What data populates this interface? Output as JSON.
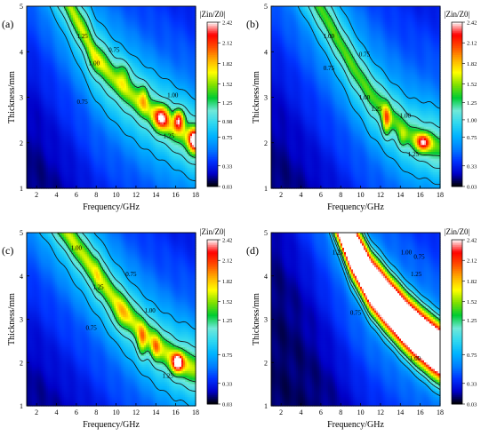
{
  "figure": {
    "colorbar_title": "|Zin/Z0|",
    "colormap": [
      "#000000",
      "#0000c8",
      "#0033ff",
      "#0080ff",
      "#00b4ff",
      "#30d8f0",
      "#70e8d8",
      "#00cc33",
      "#7de000",
      "#ffff00",
      "#ffb000",
      "#ff5000",
      "#ff0000",
      "#ffffff"
    ]
  },
  "chart_data": [
    {
      "type": "heatmap",
      "panel_label": "(a)",
      "xlabel": "Frequency/GHz",
      "ylabel": "Thickness/mm",
      "xlim": [
        1,
        18
      ],
      "ylim": [
        1,
        5
      ],
      "xticks": [
        2,
        4,
        6,
        8,
        10,
        12,
        14,
        16,
        18
      ],
      "yticks": [
        1,
        2,
        3,
        4,
        5
      ],
      "colorbar_ticks": [
        0.03,
        0.33,
        0.75,
        0.98,
        1.25,
        1.52,
        1.82,
        2.12,
        2.42
      ],
      "contour_levels": [
        0.75,
        1.0,
        1.25
      ],
      "contour_labels": [
        {
          "text": "1.25",
          "x": 6.6,
          "y": 4.3
        },
        {
          "text": "0.75",
          "x": 9.8,
          "y": 4.0
        },
        {
          "text": "1.00",
          "x": 7.8,
          "y": 3.7
        },
        {
          "text": "0.75",
          "x": 6.6,
          "y": 2.85
        },
        {
          "text": "1.00",
          "x": 15.7,
          "y": 3.0
        },
        {
          "text": "1.25",
          "x": 15.3,
          "y": 2.1
        }
      ],
      "ridge": [
        [
          6.5,
          4.5
        ],
        [
          8,
          3.85
        ],
        [
          10,
          3.35
        ],
        [
          12,
          2.95
        ],
        [
          14,
          2.6
        ],
        [
          16,
          2.3
        ],
        [
          18,
          2.05
        ]
      ],
      "peaks": [
        {
          "x": 6.7,
          "y": 4.6,
          "value": 1.4,
          "sx": 0.5,
          "sy": 0.25
        },
        {
          "x": 8.0,
          "y": 3.8,
          "value": 1.5,
          "sx": 0.6,
          "sy": 0.2
        },
        {
          "x": 10.8,
          "y": 3.5,
          "value": 1.6,
          "sx": 0.45,
          "sy": 0.2
        },
        {
          "x": 12.8,
          "y": 3.0,
          "value": 1.75,
          "sx": 0.3,
          "sy": 0.2
        },
        {
          "x": 14.6,
          "y": 2.55,
          "value": 2.3,
          "sx": 0.5,
          "sy": 0.18
        },
        {
          "x": 16.3,
          "y": 2.5,
          "value": 2.5,
          "sx": 0.35,
          "sy": 0.15
        },
        {
          "x": 17.9,
          "y": 2.05,
          "value": 2.6,
          "sx": 0.4,
          "sy": 0.18
        }
      ],
      "ridge_value": 1.32,
      "ridge_width": 0.17,
      "mid_width": 0.6
    },
    {
      "type": "heatmap",
      "panel_label": "(b)",
      "xlabel": "Frequency/GHz",
      "ylabel": "Thickness/mm",
      "xlim": [
        1,
        18
      ],
      "ylim": [
        1,
        5
      ],
      "xticks": [
        2,
        4,
        6,
        8,
        10,
        12,
        14,
        16,
        18
      ],
      "yticks": [
        1,
        2,
        3,
        4,
        5
      ],
      "colorbar_ticks": [
        0.03,
        0.33,
        0.75,
        1.0,
        1.25,
        1.52,
        1.82,
        2.12,
        2.42
      ],
      "contour_levels": [
        0.75,
        1.0,
        1.25
      ],
      "contour_labels": [
        {
          "text": "1.00",
          "x": 6.8,
          "y": 4.3
        },
        {
          "text": "0.75",
          "x": 10.4,
          "y": 3.9
        },
        {
          "text": "0.75",
          "x": 6.8,
          "y": 3.6
        },
        {
          "text": "1.00",
          "x": 10.4,
          "y": 2.95
        },
        {
          "text": "1.25",
          "x": 11.6,
          "y": 2.7
        },
        {
          "text": "1.00",
          "x": 14.5,
          "y": 2.55
        },
        {
          "text": "1.25",
          "x": 15.3,
          "y": 1.7
        }
      ],
      "ridge": [
        [
          7,
          4.55
        ],
        [
          9,
          3.75
        ],
        [
          11,
          3.05
        ],
        [
          13,
          2.55
        ],
        [
          15,
          2.15
        ],
        [
          18,
          1.9
        ]
      ],
      "peaks": [
        {
          "x": 12.6,
          "y": 2.5,
          "value": 2.1,
          "sx": 0.28,
          "sy": 0.22
        },
        {
          "x": 14.2,
          "y": 2.1,
          "value": 1.6,
          "sx": 0.3,
          "sy": 0.15
        },
        {
          "x": 16.3,
          "y": 2.0,
          "value": 2.35,
          "sx": 0.5,
          "sy": 0.13
        }
      ],
      "ridge_value": 1.18,
      "ridge_width": 0.15,
      "mid_width": 0.55
    },
    {
      "type": "heatmap",
      "panel_label": "(c)",
      "xlabel": "Frequency/GHz",
      "ylabel": "Thickness/mm",
      "xlim": [
        1,
        18
      ],
      "ylim": [
        1,
        5
      ],
      "xticks": [
        2,
        4,
        6,
        8,
        10,
        12,
        14,
        16,
        18
      ],
      "yticks": [
        1,
        2,
        3,
        4,
        5
      ],
      "colorbar_ticks": [
        0.03,
        0.33,
        0.75,
        1.25,
        1.52,
        1.82,
        2.12,
        2.42
      ],
      "contour_levels": [
        0.75,
        1.0,
        1.25
      ],
      "contour_labels": [
        {
          "text": "1.00",
          "x": 6.0,
          "y": 4.6
        },
        {
          "text": "1.25",
          "x": 8.2,
          "y": 3.7
        },
        {
          "text": "0.75",
          "x": 11.5,
          "y": 4.0
        },
        {
          "text": "1.00",
          "x": 13.4,
          "y": 3.15
        },
        {
          "text": "0.75",
          "x": 7.5,
          "y": 2.75
        },
        {
          "text": "1.25",
          "x": 15.2,
          "y": 1.65
        }
      ],
      "ridge": [
        [
          6,
          4.7
        ],
        [
          8,
          4.05
        ],
        [
          10,
          3.4
        ],
        [
          12,
          2.85
        ],
        [
          14,
          2.4
        ],
        [
          16,
          2.05
        ],
        [
          18,
          1.85
        ]
      ],
      "peaks": [
        {
          "x": 8.1,
          "y": 4.0,
          "value": 1.5,
          "sx": 0.25,
          "sy": 0.35
        },
        {
          "x": 10.5,
          "y": 3.1,
          "value": 1.6,
          "sx": 0.6,
          "sy": 0.25
        },
        {
          "x": 12.6,
          "y": 2.5,
          "value": 1.85,
          "sx": 0.3,
          "sy": 0.25
        },
        {
          "x": 14.0,
          "y": 2.35,
          "value": 1.75,
          "sx": 0.3,
          "sy": 0.2
        },
        {
          "x": 16.2,
          "y": 2.0,
          "value": 2.55,
          "sx": 0.4,
          "sy": 0.15
        }
      ],
      "ridge_value": 1.35,
      "ridge_width": 0.2,
      "mid_width": 0.6
    },
    {
      "type": "heatmap",
      "panel_label": "(d)",
      "xlabel": "Frequency/GHz",
      "ylabel": "Thickness/mm",
      "xlim": [
        1,
        18
      ],
      "ylim": [
        1,
        5
      ],
      "xticks": [
        2,
        4,
        6,
        8,
        10,
        12,
        14,
        16,
        18
      ],
      "yticks": [
        1,
        2,
        3,
        4,
        5
      ],
      "colorbar_ticks": [
        0.03,
        0.33,
        0.75,
        1.25,
        1.52,
        1.82,
        2.12,
        2.42
      ],
      "contour_levels": [
        0.75,
        1.0,
        1.25
      ],
      "contour_labels": [
        {
          "text": "1.25",
          "x": 7.7,
          "y": 4.5
        },
        {
          "text": "1.00",
          "x": 14.6,
          "y": 4.5
        },
        {
          "text": "0.75",
          "x": 15.9,
          "y": 4.4
        },
        {
          "text": "1.25",
          "x": 15.6,
          "y": 4.0
        },
        {
          "text": "0.75",
          "x": 9.5,
          "y": 3.1
        },
        {
          "text": "1.00",
          "x": 15.5,
          "y": 2.05
        }
      ],
      "ridge": [
        [
          8,
          5.3
        ],
        [
          9,
          4.7
        ],
        [
          11,
          3.85
        ],
        [
          13,
          3.3
        ],
        [
          15,
          2.8
        ],
        [
          17,
          2.4
        ],
        [
          18.2,
          2.2
        ]
      ],
      "peaks": [],
      "ridge_value": 4.0,
      "ridge_width": 0.42,
      "mid_width": 0.35
    }
  ]
}
